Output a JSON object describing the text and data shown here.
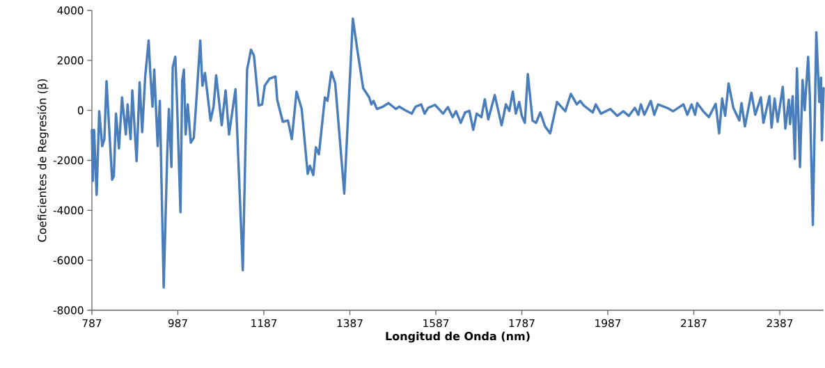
{
  "chart_data": {
    "type": "line",
    "xlabel": "Longitud de Onda (nm)",
    "ylabel": "Coeficientes de Regresión (β)",
    "xlim": [
      787,
      2489
    ],
    "ylim": [
      -8000,
      4000
    ],
    "xticks": [
      787,
      987,
      1187,
      1387,
      1587,
      1787,
      1987,
      2187,
      2387
    ],
    "yticks": [
      -8000,
      -6000,
      -4000,
      -2000,
      0,
      2000,
      4000
    ],
    "line_style": "solid",
    "x": [
      787,
      789,
      792,
      798,
      804,
      811,
      816,
      821,
      834,
      838,
      843,
      850,
      857,
      866,
      870,
      877,
      881,
      891,
      898,
      904,
      911,
      919,
      923,
      928,
      932,
      940,
      945,
      954,
      962,
      966,
      972,
      975,
      981,
      985,
      993,
      997,
      1001,
      1005,
      1010,
      1017,
      1024,
      1029,
      1039,
      1044,
      1050,
      1063,
      1070,
      1076,
      1089,
      1098,
      1106,
      1121,
      1138,
      1148,
      1157,
      1164,
      1175,
      1183,
      1189,
      1200,
      1214,
      1218,
      1231,
      1243,
      1252,
      1263,
      1275,
      1289,
      1294,
      1302,
      1308,
      1315,
      1329,
      1335,
      1344,
      1353,
      1374,
      1394,
      1404,
      1418,
      1432,
      1437,
      1442,
      1450,
      1464,
      1477,
      1494,
      1502,
      1515,
      1531,
      1540,
      1553,
      1561,
      1569,
      1585,
      1604,
      1615,
      1626,
      1634,
      1645,
      1655,
      1665,
      1674,
      1682,
      1693,
      1701,
      1709,
      1724,
      1740,
      1750,
      1758,
      1766,
      1773,
      1781,
      1787,
      1794,
      1801,
      1812,
      1820,
      1830,
      1841,
      1853,
      1869,
      1888,
      1901,
      1915,
      1923,
      1931,
      1952,
      1959,
      1971,
      1993,
      2009,
      2023,
      2036,
      2050,
      2058,
      2064,
      2072,
      2087,
      2095,
      2104,
      2125,
      2139,
      2163,
      2172,
      2182,
      2190,
      2195,
      2209,
      2222,
      2238,
      2246,
      2253,
      2260,
      2268,
      2279,
      2293,
      2298,
      2306,
      2321,
      2330,
      2343,
      2349,
      2363,
      2368,
      2375,
      2382,
      2394,
      2400,
      2408,
      2411,
      2417,
      2422,
      2427,
      2434,
      2440,
      2445,
      2453,
      2457,
      2464,
      2472,
      2479,
      2483,
      2485,
      2489
    ],
    "series": [
      {
        "color": "#4a7ebb",
        "values": [
          -780,
          -2820,
          -780,
          -3380,
          -36,
          -1430,
          -1150,
          1170,
          -2775,
          -2635,
          -130,
          -1520,
          520,
          -960,
          240,
          -1150,
          800,
          -2030,
          1125,
          -870,
          1360,
          2795,
          1450,
          150,
          1635,
          -1430,
          380,
          -7090,
          -1890,
          55,
          -2265,
          1725,
          2145,
          335,
          -4075,
          1170,
          1635,
          -965,
          240,
          -1290,
          -1100,
          150,
          2795,
          985,
          1495,
          -405,
          150,
          1405,
          -595,
          800,
          -965,
          845,
          -6395,
          1635,
          2425,
          2190,
          195,
          240,
          985,
          1265,
          1355,
          430,
          -455,
          -405,
          -1150,
          750,
          55,
          -2540,
          -2215,
          -2590,
          -1475,
          -1755,
          520,
          380,
          1540,
          1080,
          -3330,
          3675,
          2470,
          890,
          520,
          240,
          380,
          55,
          150,
          290,
          55,
          150,
          10,
          -130,
          150,
          240,
          -130,
          100,
          220,
          -130,
          130,
          -270,
          -35,
          -500,
          -85,
          -20,
          -780,
          -130,
          -270,
          445,
          -360,
          615,
          -595,
          240,
          -20,
          750,
          -130,
          335,
          -220,
          -500,
          1450,
          -405,
          -500,
          -85,
          -640,
          -920,
          335,
          -35,
          660,
          240,
          380,
          195,
          -85,
          240,
          -130,
          55,
          -220,
          -35,
          -220,
          100,
          -175,
          240,
          -175,
          380,
          -175,
          240,
          100,
          -35,
          240,
          -175,
          240,
          -175,
          290,
          -35,
          -270,
          260,
          -920,
          475,
          -220,
          1080,
          100,
          -405,
          290,
          -640,
          705,
          -175,
          520,
          -500,
          570,
          -685,
          475,
          -455,
          940,
          -730,
          430,
          -545,
          570,
          -1940,
          1680,
          -2265,
          1215,
          10,
          2145,
          520,
          -4585,
          3120,
          335,
          1310,
          -1200,
          890
        ]
      }
    ]
  }
}
